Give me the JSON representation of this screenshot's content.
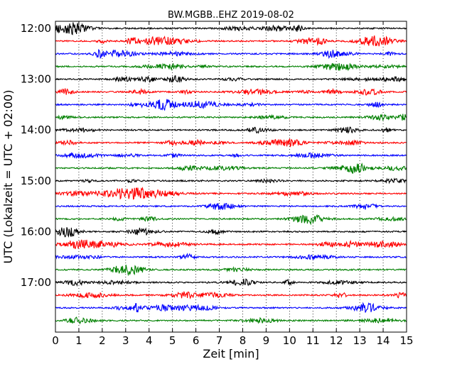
{
  "chart_data": {
    "type": "line",
    "title": "BW.MGBB..EHZ 2019-08-02",
    "xlabel": "Zeit  [min]",
    "ylabel": "UTC (Lokalzeit = UTC + 02:00)",
    "xlim": [
      0,
      15
    ],
    "x_ticks": [
      0,
      1,
      2,
      3,
      4,
      5,
      6,
      7,
      8,
      9,
      10,
      11,
      12,
      13,
      14,
      15
    ],
    "x_tick_labels": [
      "0",
      "1",
      "2",
      "3",
      "4",
      "5",
      "6",
      "7",
      "8",
      "9",
      "10",
      "11",
      "12",
      "13",
      "14",
      "15"
    ],
    "x_grid": "dotted",
    "y_tick_labels": [
      "12:00",
      "13:00",
      "14:00",
      "15:00",
      "16:00",
      "17:00"
    ],
    "trace_interval_minutes": 15,
    "trace_color_cycle": [
      "#000000",
      "#ff0000",
      "#0000ff",
      "#008000"
    ],
    "series": [
      {
        "start": "12:00",
        "color": "#000000"
      },
      {
        "start": "12:15",
        "color": "#ff0000"
      },
      {
        "start": "12:30",
        "color": "#0000ff"
      },
      {
        "start": "12:45",
        "color": "#008000"
      },
      {
        "start": "13:00",
        "color": "#000000"
      },
      {
        "start": "13:15",
        "color": "#ff0000"
      },
      {
        "start": "13:30",
        "color": "#0000ff"
      },
      {
        "start": "13:45",
        "color": "#008000"
      },
      {
        "start": "14:00",
        "color": "#000000"
      },
      {
        "start": "14:15",
        "color": "#ff0000"
      },
      {
        "start": "14:30",
        "color": "#0000ff"
      },
      {
        "start": "14:45",
        "color": "#008000"
      },
      {
        "start": "15:00",
        "color": "#000000"
      },
      {
        "start": "15:15",
        "color": "#ff0000"
      },
      {
        "start": "15:30",
        "color": "#0000ff"
      },
      {
        "start": "15:45",
        "color": "#008000"
      },
      {
        "start": "16:00",
        "color": "#000000"
      },
      {
        "start": "16:15",
        "color": "#ff0000"
      },
      {
        "start": "16:30",
        "color": "#0000ff"
      },
      {
        "start": "16:45",
        "color": "#008000"
      },
      {
        "start": "17:00",
        "color": "#000000"
      },
      {
        "start": "17:15",
        "color": "#ff0000"
      },
      {
        "start": "17:30",
        "color": "#0000ff"
      },
      {
        "start": "17:45",
        "color": "#008000"
      }
    ]
  }
}
